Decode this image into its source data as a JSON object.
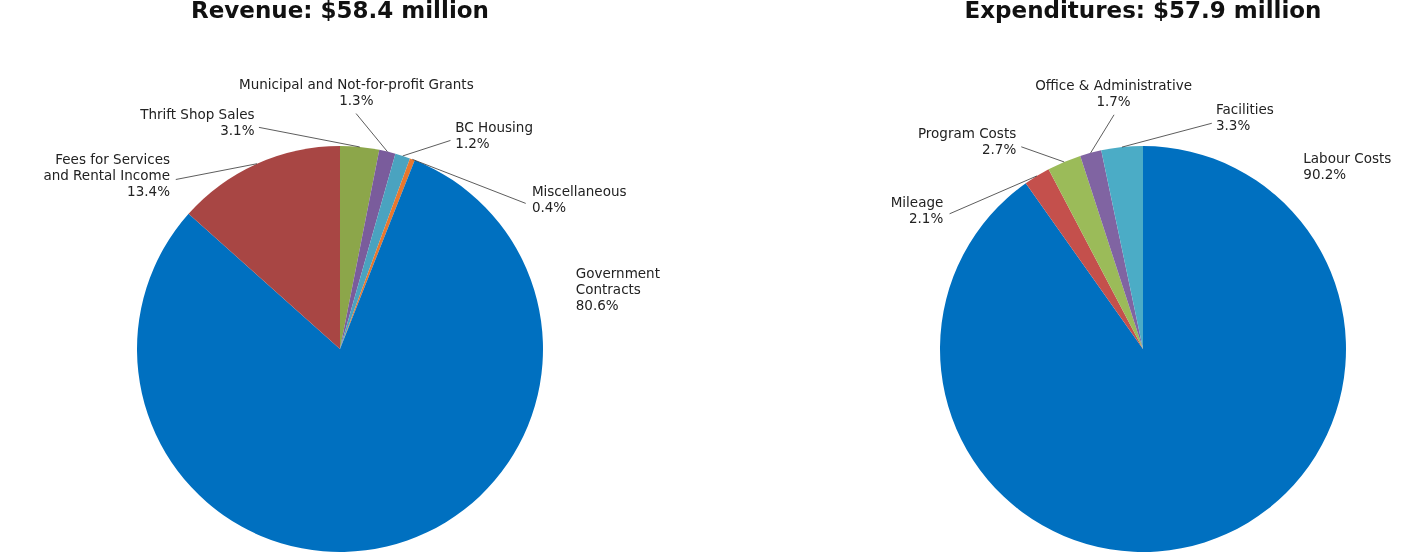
{
  "chart_data": [
    {
      "type": "pie",
      "title": "Revenue: $58.4 million",
      "categories": [
        "Thrift Shop Sales",
        "Municipal and Not-for-profit Grants",
        "BC Housing",
        "Miscellaneous",
        "Government\nContracts",
        "Fees for Services\nand Rental Income"
      ],
      "values": [
        3.1,
        1.3,
        1.2,
        0.4,
        80.6,
        13.4
      ],
      "value_labels": [
        "3.1%",
        "1.3%",
        "1.2%",
        "0.4%",
        "80.6%",
        "13.4%"
      ],
      "colors": [
        "#8ca64a",
        "#7a5c9c",
        "#4aa3c0",
        "#e8772e",
        "#0070c0",
        "#a84644"
      ]
    },
    {
      "type": "pie",
      "title": "Expenditures: $57.9 million",
      "categories": [
        "Labour Costs",
        "Mileage",
        "Program Costs",
        "Office & Administrative",
        "Facilities"
      ],
      "values": [
        90.2,
        2.1,
        2.7,
        1.7,
        3.3
      ],
      "value_labels": [
        "90.2%",
        "2.1%",
        "2.7%",
        "1.7%",
        "3.3%"
      ],
      "colors": [
        "#0070c0",
        "#c4504c",
        "#9bbb59",
        "#8064a2",
        "#4bacc6"
      ]
    }
  ]
}
